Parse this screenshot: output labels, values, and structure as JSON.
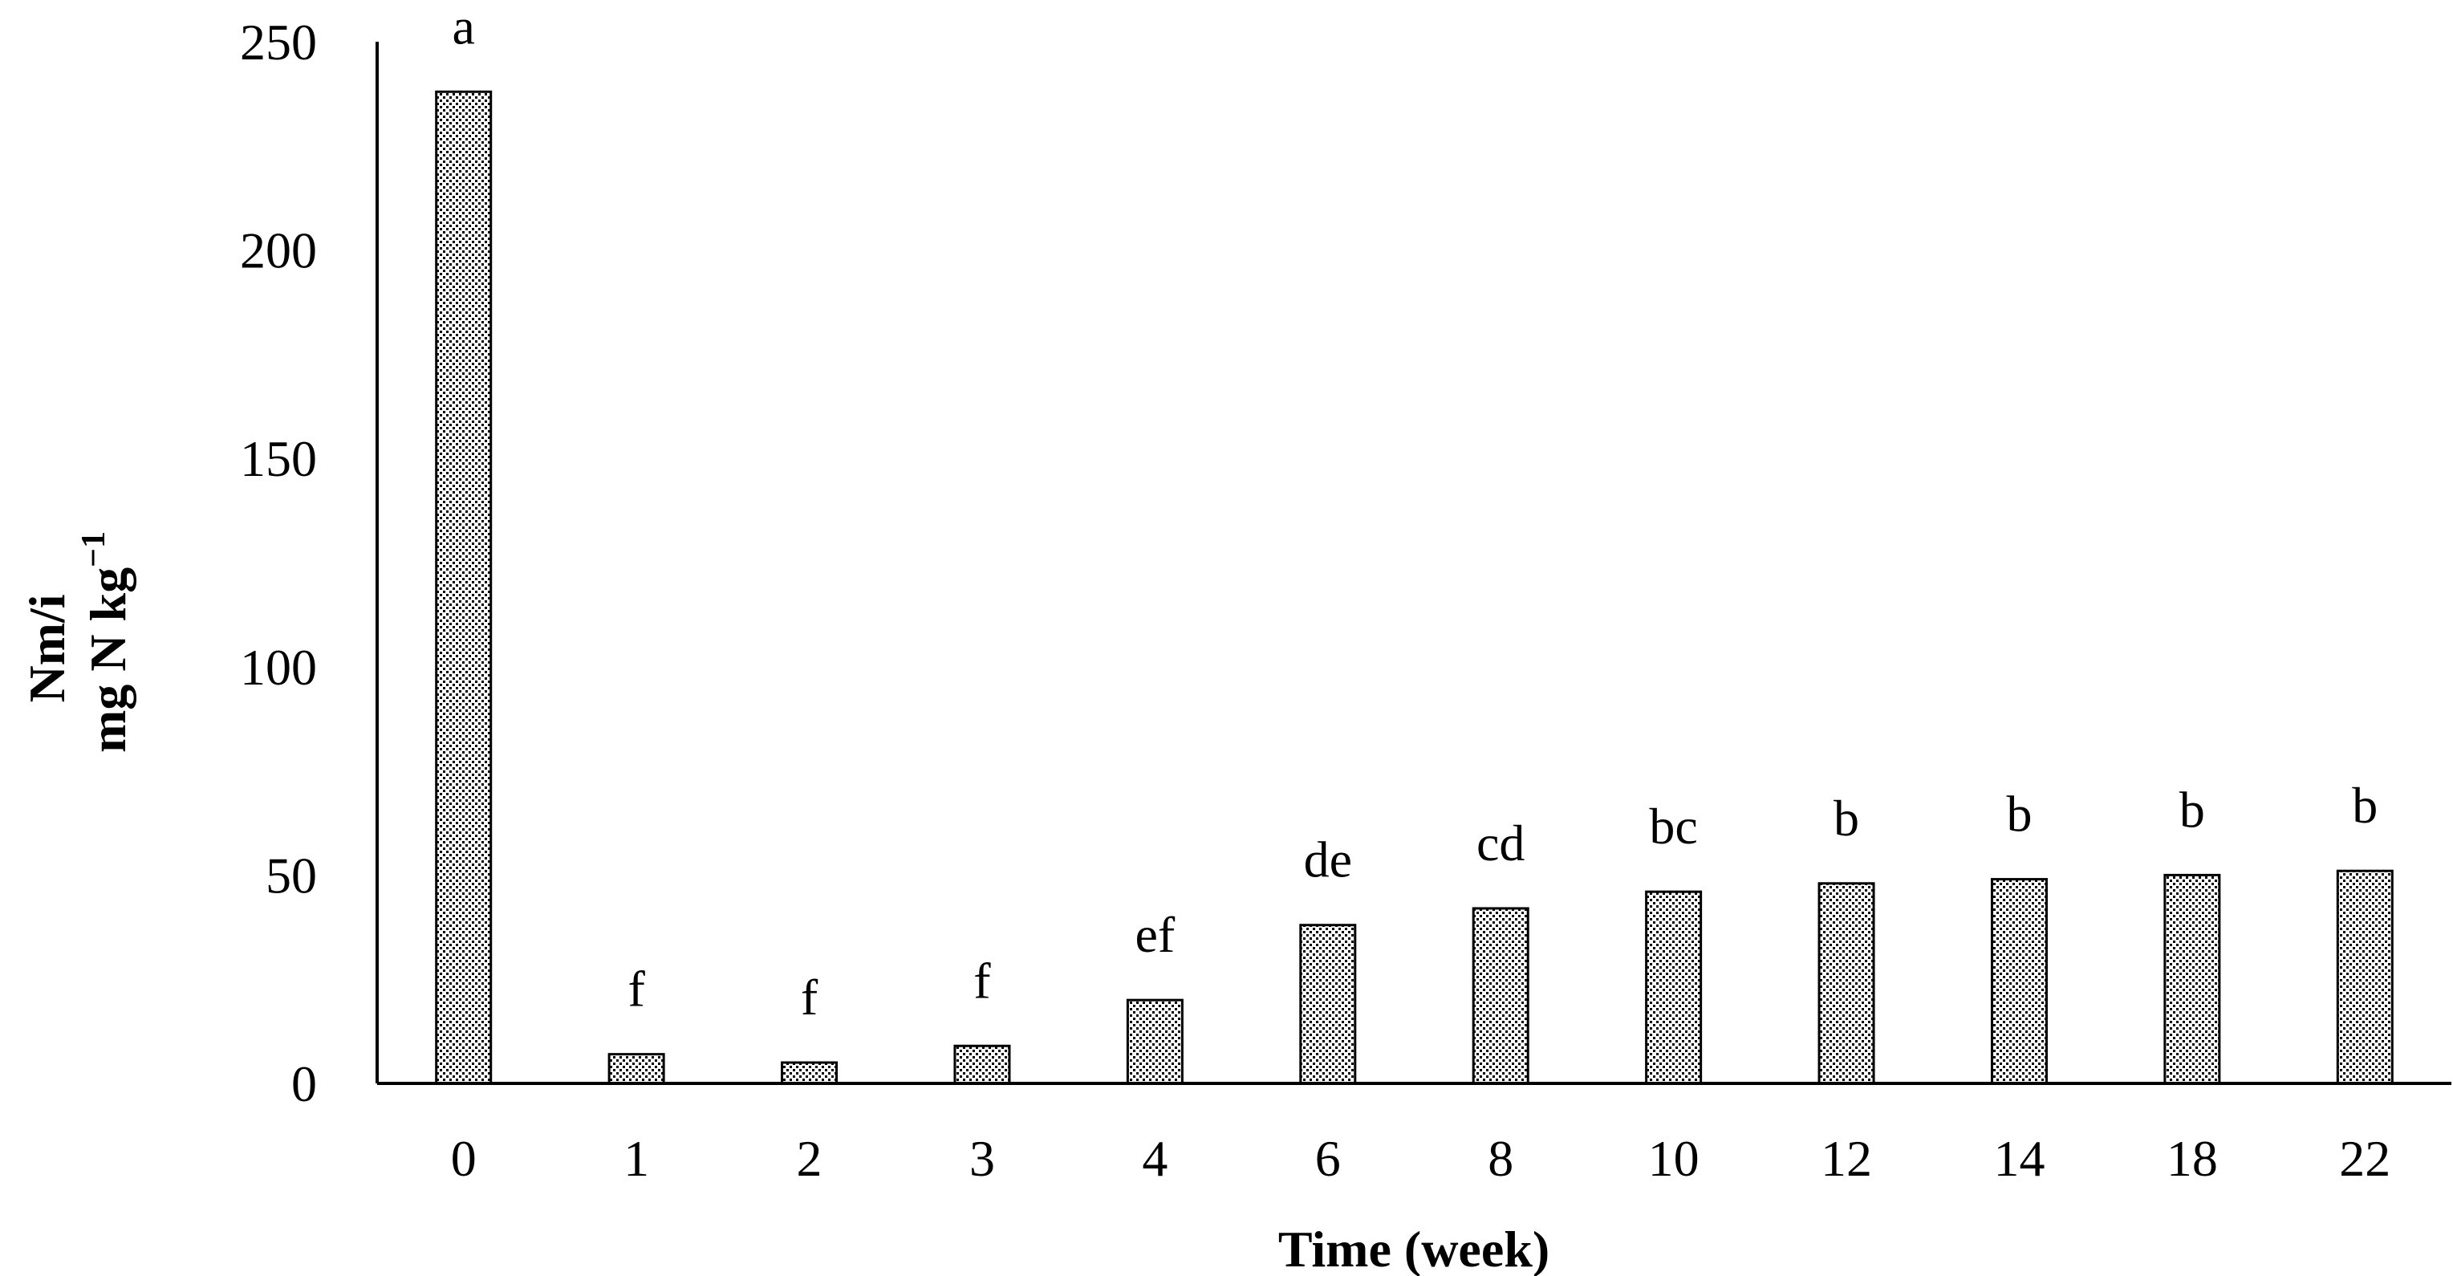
{
  "chart_data": {
    "type": "bar",
    "title": "",
    "xlabel": "Time (week)",
    "ylabel_line1": "Nm/i",
    "ylabel_line2_base": "mg N kg",
    "ylabel_line2_sup": "−1",
    "categories": [
      "0",
      "1",
      "2",
      "3",
      "4",
      "6",
      "8",
      "10",
      "12",
      "14",
      "18",
      "22"
    ],
    "values": [
      238,
      7,
      5,
      9,
      20,
      38,
      42,
      46,
      48,
      49,
      50,
      51
    ],
    "letters": [
      "a",
      "f",
      "f",
      "f",
      "ef",
      "de",
      "cd",
      "bc",
      "b",
      "b",
      "b",
      "b"
    ],
    "yticks": [
      0,
      50,
      100,
      150,
      200,
      250
    ],
    "ylim": [
      0,
      250
    ],
    "grid": false,
    "legend": "none",
    "bar_fill": "dotted pattern",
    "colors": {
      "bar_stroke": "#000000",
      "bar_dot": "#000000",
      "background": "#ffffff"
    }
  }
}
